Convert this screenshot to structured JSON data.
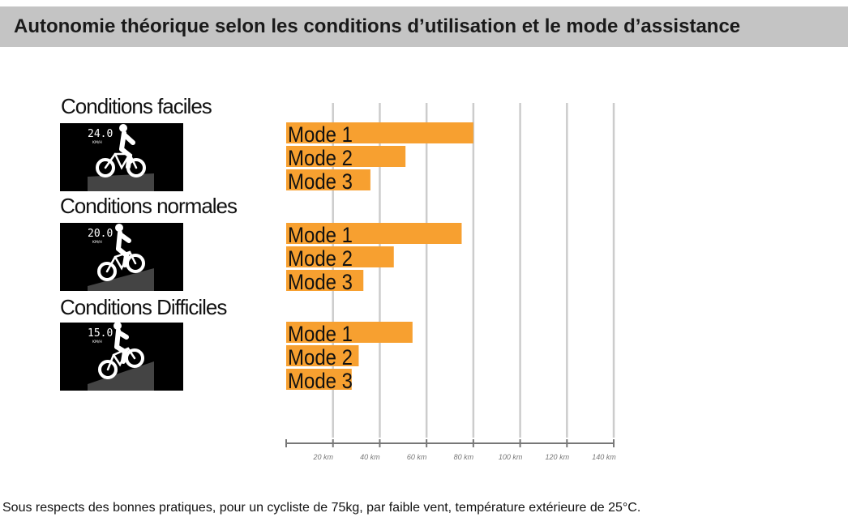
{
  "header": {
    "title": "Autonomie théorique selon les conditions d’utilisation et le mode d’assistance"
  },
  "conditions": [
    {
      "title": "Conditions faciles",
      "display_speed": "24.0",
      "display_unit": "KM/H",
      "icon": "cyclist-on-flat-terrain-icon"
    },
    {
      "title": "Conditions normales",
      "display_speed": "20.0",
      "display_unit": "KM/H",
      "icon": "cyclist-on-moderate-slope-icon"
    },
    {
      "title": "Conditions Difficiles",
      "display_speed": "15.0",
      "display_unit": "KM/H",
      "icon": "cyclist-on-steep-slope-icon"
    }
  ],
  "chart_data": {
    "type": "bar",
    "orientation": "horizontal",
    "xunit": "km",
    "xlim": [
      0,
      140
    ],
    "xticks": [
      20,
      40,
      60,
      80,
      100,
      120,
      140
    ],
    "xtick_labels": [
      "20 km",
      "40 km",
      "60 km",
      "80 km",
      "100 km",
      "120 km",
      "140 km"
    ],
    "grid": true,
    "bar_color": "#f7a030",
    "groups": [
      {
        "condition": "Conditions faciles",
        "bars": [
          {
            "label": "Mode 1",
            "value": 80
          },
          {
            "label": "Mode 2",
            "value": 51
          },
          {
            "label": "Mode 3",
            "value": 36
          }
        ]
      },
      {
        "condition": "Conditions normales",
        "bars": [
          {
            "label": "Mode 1",
            "value": 75
          },
          {
            "label": "Mode 2",
            "value": 46
          },
          {
            "label": "Mode 3",
            "value": 33
          }
        ]
      },
      {
        "condition": "Conditions Difficiles",
        "bars": [
          {
            "label": "Mode 1",
            "value": 54
          },
          {
            "label": "Mode 2",
            "value": 31
          },
          {
            "label": "Mode 3",
            "value": 28
          }
        ]
      }
    ]
  },
  "footnote": "Sous respects des bonnes pratiques, pour un cycliste de 75kg, par faible vent, température extérieure de 25°C."
}
